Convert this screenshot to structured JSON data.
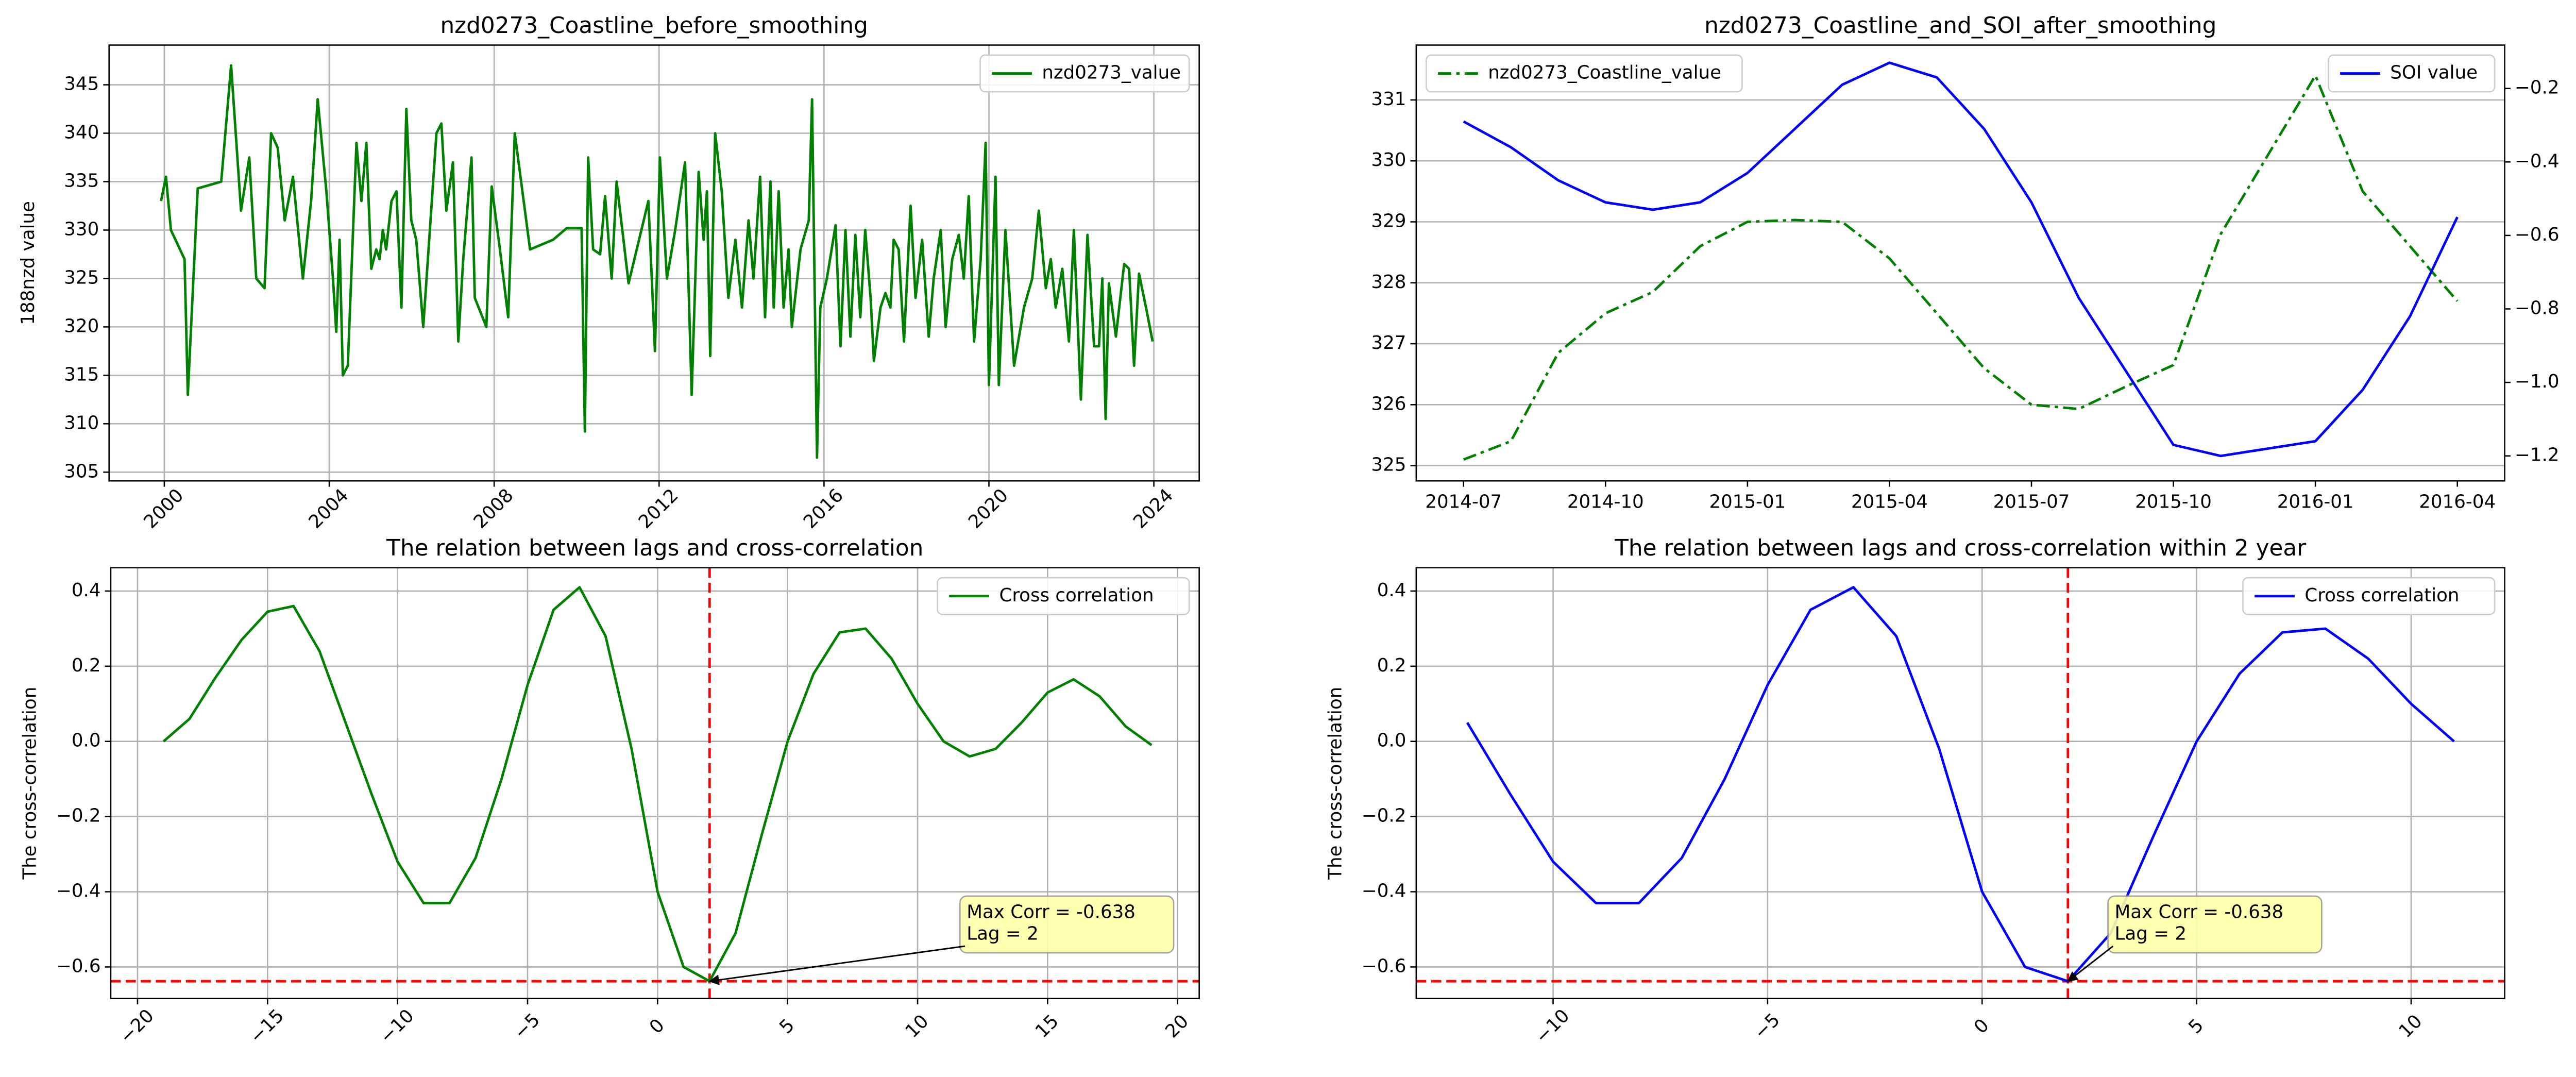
{
  "chart_data": [
    {
      "type": "line",
      "title": "nzd0273_Coastline_before_smoothing",
      "ylabel": "188nzd value",
      "x": [
        1999.92,
        2000.04,
        2000.16,
        2000.49,
        2000.57,
        2000.81,
        2001.38,
        2001.62,
        2001.86,
        2002.06,
        2002.23,
        2002.43,
        2002.59,
        2002.75,
        2002.92,
        2003.12,
        2003.36,
        2003.56,
        2003.72,
        2003.93,
        2004.09,
        2004.17,
        2004.25,
        2004.33,
        2004.45,
        2004.66,
        2004.78,
        2004.9,
        2005.02,
        2005.14,
        2005.22,
        2005.3,
        2005.38,
        2005.51,
        2005.63,
        2005.75,
        2005.87,
        2005.99,
        2006.11,
        2006.28,
        2006.44,
        2006.6,
        2006.72,
        2006.84,
        2007.0,
        2007.13,
        2007.25,
        2007.45,
        2007.53,
        2007.81,
        2007.94,
        2008.14,
        2008.34,
        2008.5,
        2008.87,
        2009.43,
        2009.76,
        2010.12,
        2010.2,
        2010.28,
        2010.4,
        2010.57,
        2010.69,
        2010.85,
        2010.97,
        2011.26,
        2011.74,
        2011.9,
        2012.02,
        2012.19,
        2012.39,
        2012.63,
        2012.79,
        2012.96,
        2013.08,
        2013.16,
        2013.24,
        2013.36,
        2013.52,
        2013.68,
        2013.85,
        2014.01,
        2014.17,
        2014.29,
        2014.45,
        2014.57,
        2014.7,
        2014.78,
        2014.9,
        2015.02,
        2015.14,
        2015.22,
        2015.43,
        2015.63,
        2015.71,
        2015.83,
        2015.91,
        2016.07,
        2016.28,
        2016.4,
        2016.52,
        2016.64,
        2016.76,
        2016.88,
        2017.0,
        2017.13,
        2017.21,
        2017.37,
        2017.49,
        2017.61,
        2017.69,
        2017.81,
        2017.94,
        2018.1,
        2018.22,
        2018.38,
        2018.54,
        2018.66,
        2018.83,
        2018.95,
        2019.11,
        2019.27,
        2019.39,
        2019.51,
        2019.64,
        2019.8,
        2019.92,
        2020.0,
        2020.16,
        2020.24,
        2020.4,
        2020.61,
        2020.85,
        2021.05,
        2021.21,
        2021.38,
        2021.5,
        2021.62,
        2021.78,
        2021.94,
        2022.06,
        2022.23,
        2022.39,
        2022.55,
        2022.67,
        2022.75,
        2022.83,
        2022.91,
        2023.08,
        2023.28,
        2023.4,
        2023.52,
        2023.64,
        2023.81,
        2023.97
      ],
      "series": [
        {
          "name": "nzd0273_value",
          "color": "green",
          "values": [
            333,
            335.5,
            330,
            327,
            313,
            334.3,
            335,
            347,
            332,
            337.5,
            325,
            324,
            340,
            338.5,
            331,
            335.5,
            325,
            333,
            343.5,
            334,
            325,
            319.5,
            329,
            315,
            316,
            339,
            333,
            339,
            326,
            328,
            327,
            330,
            328,
            333,
            334,
            322,
            342.5,
            331,
            329,
            320,
            330,
            340,
            341,
            332,
            337,
            318.5,
            327,
            337.5,
            323,
            320,
            334.5,
            328,
            321,
            340,
            328,
            329,
            330.2,
            330.2,
            309.2,
            337.5,
            328,
            327.5,
            333.5,
            325,
            335,
            324.5,
            333,
            317.5,
            337.5,
            325,
            330,
            337,
            313,
            336,
            329,
            334,
            317,
            340,
            334,
            323,
            329,
            322,
            331,
            325,
            335.5,
            321,
            335,
            322,
            334,
            322,
            328,
            320,
            328,
            331,
            343.5,
            306.5,
            322,
            325,
            330.5,
            318,
            330,
            319,
            329.5,
            321,
            330,
            323,
            316.5,
            322,
            323.5,
            322,
            329,
            328,
            318.5,
            332.5,
            323,
            329,
            319,
            325,
            330,
            320,
            327,
            329.5,
            325,
            333.5,
            318.5,
            327,
            339,
            314,
            335.5,
            314,
            330,
            316,
            322,
            325,
            332,
            324,
            327,
            322,
            326,
            318.5,
            330,
            312.5,
            329.5,
            318,
            318,
            325,
            310.5,
            324.5,
            319,
            326.5,
            326,
            316,
            325.5,
            322,
            318.5
          ]
        }
      ],
      "xlim": [
        1998.66,
        2025.1
      ],
      "xticks": [
        2000,
        2004,
        2008,
        2012,
        2016,
        2020,
        2024
      ],
      "xtick_rotation": 45,
      "ylim": [
        304.1,
        349.1
      ],
      "yticks": [
        305,
        310,
        315,
        320,
        325,
        330,
        335,
        340,
        345
      ],
      "grid": true,
      "legend": "upper right"
    },
    {
      "type": "line",
      "title": "nzd0273_Coastline_and_SOI_after_smoothing",
      "y2label": "SOI value",
      "x": [
        "2014-06",
        "2014-07",
        "2014-08",
        "2014-09",
        "2014-10",
        "2014-11",
        "2014-12",
        "2015-01",
        "2015-02",
        "2015-03",
        "2015-04",
        "2015-05",
        "2015-06",
        "2015-07",
        "2015-08",
        "2015-09",
        "2015-10",
        "2015-11",
        "2015-12",
        "2016-01",
        "2016-02",
        "2016-03"
      ],
      "series": [
        {
          "name": "nzd0273_Coastline_value",
          "color": "green",
          "dash": "dashdot",
          "legend": "upper left",
          "values": [
            325.1,
            325.4,
            326.85,
            327.5,
            327.85,
            328.6,
            329.0,
            329.03,
            329.0,
            328.4,
            327.5,
            326.6,
            326.0,
            325.93,
            326.3,
            326.65,
            328.8,
            330.1,
            331.4,
            329.5,
            328.6,
            327.7
          ]
        },
        {
          "name": "SOI value",
          "color": "blue",
          "axis": "y2",
          "legend": "upper right",
          "values": [
            -0.29,
            -0.36,
            -0.45,
            -0.51,
            -0.53,
            -0.51,
            -0.43,
            -0.31,
            -0.19,
            -0.13,
            -0.17,
            -0.31,
            -0.51,
            -0.77,
            -0.97,
            -1.17,
            -1.2,
            -1.18,
            -1.16,
            -1.02,
            -0.82,
            -0.55
          ]
        }
      ],
      "xlim": [
        "2014-06",
        "2016-05"
      ],
      "xticks": [
        "2014-07",
        "2014-10",
        "2015-01",
        "2015-04",
        "2015-07",
        "2015-10",
        "2016-01",
        "2016-04"
      ],
      "ylim": [
        324.75,
        331.9
      ],
      "yticks": [
        325,
        326,
        327,
        328,
        329,
        330,
        331
      ],
      "y2lim": [
        -1.268,
        -0.082
      ],
      "y2ticks": [
        {
          "value": -1.2,
          "label": "−1.2"
        },
        {
          "value": -1.0,
          "label": "−1.0"
        },
        {
          "value": -0.8,
          "label": "−0.8"
        },
        {
          "value": -0.6,
          "label": "−0.6"
        },
        {
          "value": -0.4,
          "label": "−0.4"
        },
        {
          "value": -0.2,
          "label": "−0.2"
        }
      ],
      "grid": "y"
    },
    {
      "type": "line",
      "title": "The relation between lags and cross-correlation",
      "ylabel": "The cross-correlation",
      "x": [
        -19,
        -18,
        -17,
        -16,
        -15,
        -14,
        -13,
        -12,
        -11,
        -10,
        -9,
        -8,
        -7,
        -6,
        -5,
        -4,
        -3,
        -2,
        -1,
        0,
        1,
        2,
        3,
        4,
        5,
        6,
        7,
        8,
        9,
        10,
        11,
        12,
        13,
        14,
        15,
        16,
        17,
        18,
        19
      ],
      "series": [
        {
          "name": "Cross correlation",
          "color": "green",
          "values": [
            0.0,
            0.06,
            0.17,
            0.27,
            0.345,
            0.36,
            0.24,
            0.05,
            -0.14,
            -0.32,
            -0.43,
            -0.43,
            -0.31,
            -0.1,
            0.15,
            0.35,
            0.41,
            0.28,
            -0.02,
            -0.4,
            -0.6,
            -0.638,
            -0.51,
            -0.25,
            0.0,
            0.18,
            0.29,
            0.3,
            0.22,
            0.1,
            0.0,
            -0.04,
            -0.02,
            0.05,
            0.13,
            0.165,
            0.12,
            0.04,
            -0.01
          ]
        }
      ],
      "xlim": [
        -21.03,
        20.83
      ],
      "xticks": [
        {
          "value": -20,
          "label": "−20"
        },
        {
          "value": -15,
          "label": "−15"
        },
        {
          "value": -10,
          "label": "−10"
        },
        {
          "value": -5,
          "label": "−5"
        },
        0,
        5,
        10,
        15,
        20
      ],
      "xtick_rotation": 45,
      "ylim": [
        -0.684,
        0.462
      ],
      "yticks": [
        {
          "value": -0.6,
          "label": "−0.6"
        },
        {
          "value": -0.4,
          "label": "−0.4"
        },
        {
          "value": -0.2,
          "label": "−0.2"
        },
        {
          "value": 0,
          "label": "0.0"
        },
        0.2,
        0.4
      ],
      "reference_lines": {
        "x": 2,
        "y": -0.638,
        "color": "red"
      },
      "annotation": {
        "text": [
          "Max Corr = -0.638",
          "Lag = 2"
        ],
        "x": 2,
        "y": -0.638
      },
      "grid": true,
      "legend": "upper right"
    },
    {
      "type": "line",
      "title": "The relation between lags and cross-correlation within 2 year",
      "ylabel": "The cross-correlation",
      "x": [
        -12,
        -11,
        -10,
        -9,
        -8,
        -7,
        -6,
        -5,
        -4,
        -3,
        -2,
        -1,
        0,
        1,
        2,
        3,
        4,
        5,
        6,
        7,
        8,
        9,
        10,
        11
      ],
      "series": [
        {
          "name": "Cross correlation",
          "color": "blue",
          "values": [
            0.05,
            -0.14,
            -0.32,
            -0.43,
            -0.43,
            -0.31,
            -0.1,
            0.15,
            0.35,
            0.41,
            0.28,
            -0.02,
            -0.4,
            -0.6,
            -0.638,
            -0.51,
            -0.25,
            0.0,
            0.18,
            0.29,
            0.3,
            0.22,
            0.1,
            0.0
          ]
        }
      ],
      "xlim": [
        -13.19,
        12.18
      ],
      "xticks": [
        {
          "value": -10,
          "label": "−10"
        },
        {
          "value": -5,
          "label": "−5"
        },
        0,
        5,
        10
      ],
      "xtick_rotation": 45,
      "ylim": [
        -0.684,
        0.462
      ],
      "yticks": [
        {
          "value": -0.6,
          "label": "−0.6"
        },
        {
          "value": -0.4,
          "label": "−0.4"
        },
        {
          "value": -0.2,
          "label": "−0.2"
        },
        {
          "value": 0,
          "label": "0.0"
        },
        0.2,
        0.4
      ],
      "reference_lines": {
        "x": 2,
        "y": -0.638,
        "color": "red"
      },
      "annotation": {
        "text": [
          "Max Corr = -0.638",
          "Lag = 2"
        ],
        "x": 2,
        "y": -0.638
      },
      "grid": true,
      "legend": "upper right"
    }
  ]
}
